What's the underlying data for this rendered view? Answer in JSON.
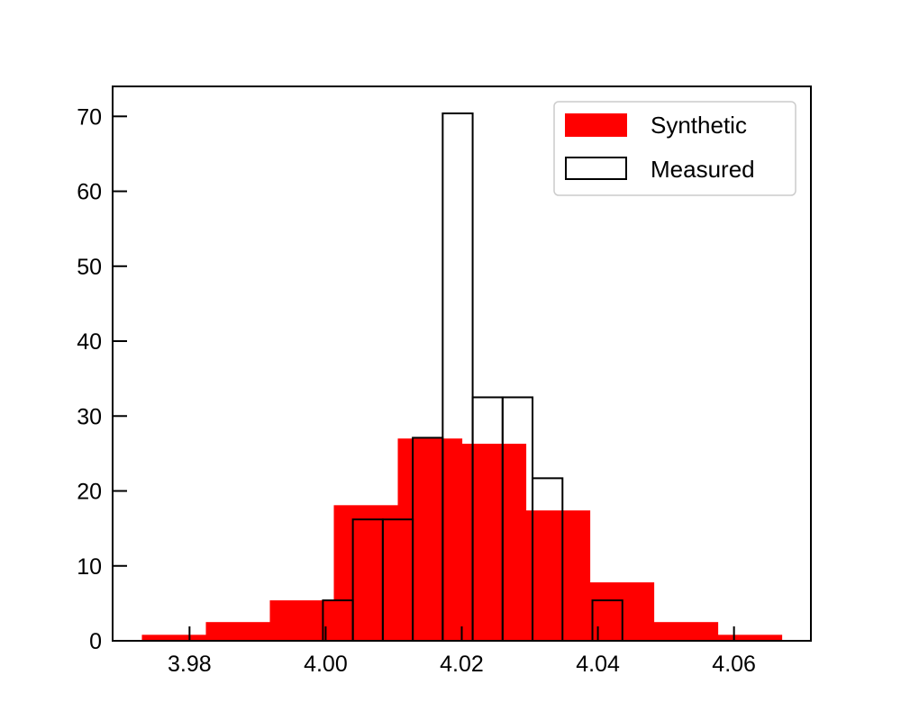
{
  "chart_data": {
    "type": "bar",
    "title": "",
    "xlabel": "",
    "ylabel": "",
    "xlim": [
      3.9687,
      4.0713
    ],
    "ylim": [
      0,
      74
    ],
    "grid": false,
    "legend_position": "top-right",
    "x_ticks": [
      "3.98",
      "4.00",
      "4.02",
      "4.04",
      "4.06"
    ],
    "y_ticks": [
      "0",
      "10",
      "20",
      "30",
      "40",
      "50",
      "60",
      "70"
    ],
    "series": [
      {
        "name": "Synthetic",
        "style": "filled",
        "color": "#ff0000",
        "bin_edges": [
          3.973,
          3.9824,
          3.9918,
          4.0012,
          4.0106,
          4.02,
          4.0294,
          4.0388,
          4.0482,
          4.0576,
          4.067
        ],
        "counts": [
          0.8,
          2.5,
          5.4,
          18.1,
          27.0,
          26.3,
          17.4,
          7.8,
          2.5,
          0.8
        ]
      },
      {
        "name": "Measured",
        "style": "outline",
        "color": "#000000",
        "bin_edges": [
          3.9996,
          4.004,
          4.0084,
          4.0128,
          4.0172,
          4.0216,
          4.026,
          4.0304,
          4.0348,
          4.0392,
          4.0436
        ],
        "counts": [
          5.4,
          16.2,
          16.2,
          27.1,
          70.4,
          32.5,
          32.5,
          21.7,
          0,
          5.4
        ]
      }
    ]
  }
}
